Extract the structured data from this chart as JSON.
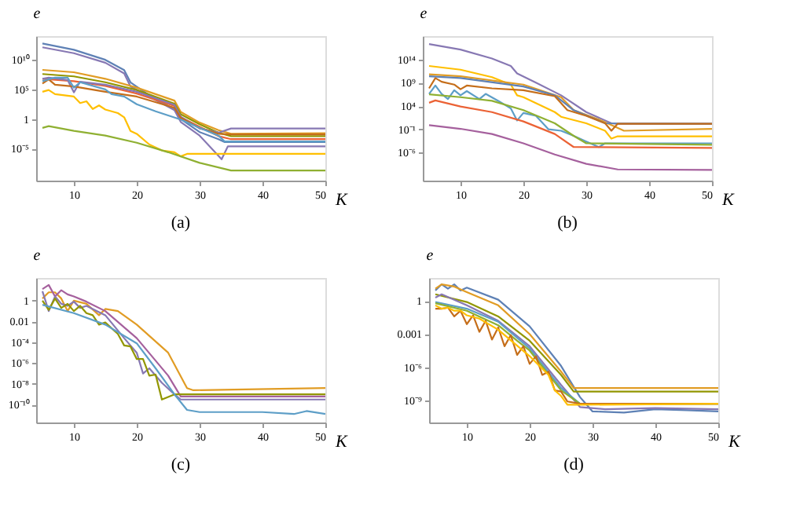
{
  "chart_data": [
    {
      "type": "line",
      "title": "(a)",
      "xlabel": "K",
      "ylabel": "e",
      "log": true,
      "xlim": [
        4,
        50
      ],
      "xticks": [
        10,
        20,
        30,
        40,
        50
      ],
      "ylim": [
        4e-11,
        100000000000000.0
      ],
      "yticks": [
        {
          "value": 1e-05,
          "label": "10⁻⁵"
        },
        1,
        {
          "value": 100000.0,
          "label": "10⁵"
        },
        {
          "value": 10000000000.0,
          "label": "10¹⁰"
        }
      ],
      "series": [
        {
          "color": "#5e81b5",
          "x": [
            5,
            10,
            15,
            18,
            19,
            22,
            26,
            27,
            30,
            33,
            34,
            50
          ],
          "values": [
            5600000000000.0,
            500000000000.0,
            10000000000.0,
            180000000.0,
            1600000.0,
            10000.0,
            40,
            1,
            0.0063,
            0.0004,
            0.00013,
            0.00013
          ]
        },
        {
          "color": "#8778b3",
          "x": [
            5,
            10,
            15,
            18,
            19,
            22,
            26,
            27,
            30,
            33.5,
            34.5,
            50
          ],
          "values": [
            1300000000000.0,
            130000000000.0,
            3200000000.0,
            50000000.0,
            320000.0,
            6300.0,
            32,
            0.32,
            0.0016,
            1.6e-07,
            2.5e-05,
            2.5e-05
          ]
        },
        {
          "color": "#e19c24",
          "x": [
            5,
            10,
            15,
            20,
            26,
            27,
            30,
            33,
            35,
            50
          ],
          "values": [
            200000000.0,
            80000000.0,
            6300000.0,
            200000.0,
            1300.0,
            16,
            0.25,
            0.013,
            0.0032,
            0.004
          ]
        },
        {
          "color": "#929600",
          "x": [
            5,
            10,
            15,
            20,
            26,
            27,
            30,
            33,
            35,
            50
          ],
          "values": [
            40000000.0,
            16000000.0,
            1600000.0,
            80000.0,
            400,
            6.3,
            0.13,
            0.005,
            0.0013,
            0.0013
          ]
        },
        {
          "color": "#eb6235",
          "x": [
            5,
            10,
            15,
            20,
            26,
            27,
            30,
            33,
            35,
            50
          ],
          "values": [
            6300000.0,
            2500000.0,
            400000.0,
            20000.0,
            160,
            2,
            0.05,
            0.0013,
            0.0004,
            0.0004
          ]
        },
        {
          "color": "#8778b3",
          "x": [
            5,
            6,
            9,
            10,
            11,
            15,
            20,
            26,
            27,
            30,
            33,
            35,
            50
          ],
          "values": [
            6300000.0,
            10000000.0,
            4000000.0,
            32000.0,
            2000000.0,
            630000.0,
            40000.0,
            250,
            2.5,
            0.025,
            0.005,
            0.025,
            0.025
          ]
        },
        {
          "color": "#c56e1a",
          "x": [
            5,
            6,
            7,
            10,
            15,
            20,
            26,
            27,
            30,
            33,
            35,
            50
          ],
          "values": [
            1000000.0,
            5000000.0,
            630000.0,
            320000.0,
            40000.0,
            6300.0,
            80,
            1.6,
            0.032,
            0.0032,
            0.0025,
            0.0025
          ]
        },
        {
          "color": "#5d9ec7",
          "x": [
            5,
            7,
            9,
            10,
            11,
            15,
            16,
            18,
            20,
            23,
            27,
            30,
            33,
            34,
            50
          ],
          "values": [
            2500000.0,
            10000000.0,
            10000000.0,
            200000.0,
            1600000.0,
            100000.0,
            16000.0,
            6300.0,
            320,
            20,
            0.8,
            0.032,
            0.0016,
            0.00016,
            0.00016
          ]
        },
        {
          "color": "#ffbf00",
          "x": [
            5,
            6,
            7,
            10,
            11,
            12,
            13,
            14,
            15,
            17,
            18,
            19,
            20,
            22,
            24,
            26,
            27,
            28,
            50
          ],
          "values": [
            40000.0,
            80000.0,
            16000.0,
            6300.0,
            500,
            1000.0,
            50,
            200,
            40,
            10,
            2,
            0.01,
            0.0032,
            5e-05,
            5e-06,
            2.5e-06,
            5e-07,
            1.3e-06,
            1.3e-06
          ]
        },
        {
          "color": "#8fb032",
          "x": [
            5,
            6,
            10,
            15,
            20,
            25,
            30,
            35,
            50
          ],
          "values": [
            0.032,
            0.063,
            0.01,
            0.0016,
            0.0001,
            2.5e-06,
            4e-08,
            2e-09,
            2e-09
          ]
        }
      ]
    },
    {
      "type": "line",
      "title": "(b)",
      "xlabel": "K",
      "ylabel": "e",
      "log": true,
      "xlim": [
        4,
        50
      ],
      "xticks": [
        10,
        20,
        30,
        40,
        50
      ],
      "ylim": [
        1e-12,
        1e+19
      ],
      "yticks": [
        {
          "value": 1e-06,
          "label": "10⁻⁶"
        },
        {
          "value": 0.1,
          "label": "10⁻¹"
        },
        {
          "value": 10000.0,
          "label": "10⁴"
        },
        {
          "value": 1000000000.0,
          "label": "10⁹"
        },
        {
          "value": 100000000000000.0,
          "label": "10¹⁴"
        }
      ],
      "series": [
        {
          "color": "#8778b3",
          "x": [
            5,
            10,
            15,
            18,
            19,
            22,
            26,
            30,
            34,
            35,
            50
          ],
          "values": [
            2e+17,
            1.3e+16,
            160000000000000.0,
            4000000000000.0,
            100000000000.0,
            1000000000.0,
            2000000.0,
            500,
            2,
            1.6,
            1.6
          ]
        },
        {
          "color": "#ffbf00",
          "x": [
            5,
            10,
            15,
            18,
            19,
            20,
            25,
            26,
            30,
            33,
            34,
            35,
            50
          ],
          "values": [
            4000000000000.0,
            630000000000.0,
            16000000000.0,
            400000000.0,
            2000000.0,
            800000.0,
            500,
            50,
            2,
            0.05,
            0.001,
            0.0032,
            0.0032
          ]
        },
        {
          "color": "#e19c24",
          "x": [
            5,
            10,
            20,
            26,
            28,
            32,
            34,
            36,
            50
          ],
          "values": [
            63000000000.0,
            25000000000.0,
            400000000.0,
            800000.0,
            1300.0,
            13,
            0.8,
            0.05,
            0.13
          ]
        },
        {
          "color": "#5e81b5",
          "x": [
            5,
            10,
            20,
            25,
            28,
            33,
            50
          ],
          "values": [
            25000000000.0,
            10000000000.0,
            160000000.0,
            2000000.0,
            1300.0,
            2,
            1.6
          ]
        },
        {
          "color": "#c56e1a",
          "x": [
            5,
            6,
            7,
            9,
            10,
            11,
            15,
            20,
            25,
            27,
            30,
            33,
            34,
            35,
            50
          ],
          "values": [
            63000000.0,
            10000000000.0,
            1600000000.0,
            400000000.0,
            40000000.0,
            250000000.0,
            63000000.0,
            25000000.0,
            1300000.0,
            1300.0,
            80,
            2,
            0.05,
            1.6,
            1.6
          ]
        },
        {
          "color": "#5d9ec7",
          "x": [
            5,
            6,
            7,
            8,
            9,
            10,
            11,
            13,
            14,
            16,
            18,
            19,
            20,
            22,
            24,
            26,
            28,
            30,
            32,
            33,
            50
          ],
          "values": [
            4000000.0,
            250000000.0,
            4000000.0,
            320000.0,
            25000000.0,
            2000000.0,
            16000000.0,
            320000.0,
            4000000.0,
            130000.0,
            3200.0,
            8,
            320,
            80,
            0.1,
            0.05,
            0.004,
            0.00025,
            1.6e-05,
            0.0001,
            0.0001
          ]
        },
        {
          "color": "#8fb032",
          "x": [
            5,
            10,
            15,
            20,
            25,
            28,
            30,
            50
          ],
          "values": [
            3200000.0,
            800000.0,
            130000.0,
            1300.0,
            2,
            0.004,
            0.0001,
            5e-05
          ]
        },
        {
          "color": "#eb6235",
          "x": [
            5,
            6,
            10,
            15,
            20,
            25,
            28,
            50
          ],
          "values": [
            50000.0,
            160000.0,
            8000.0,
            500,
            5,
            0.01,
            1.6e-05,
            1e-05
          ]
        },
        {
          "color": "#a5609d",
          "x": [
            5,
            10,
            15,
            20,
            25,
            30,
            35,
            50
          ],
          "values": [
            0.8,
            0.13,
            0.01,
            0.0001,
            4e-07,
            4e-09,
            2.5e-10,
            2e-10
          ]
        }
      ]
    },
    {
      "type": "line",
      "title": "(c)",
      "xlabel": "K",
      "ylabel": "e",
      "log": true,
      "xlim": [
        4,
        50
      ],
      "xticks": [
        10,
        20,
        30,
        40,
        50
      ],
      "ylim": [
        2e-12,
        150
      ],
      "yticks": [
        {
          "value": 1e-10,
          "label": "10⁻¹⁰"
        },
        {
          "value": 1e-08,
          "label": "10⁻⁸"
        },
        {
          "value": 1e-06,
          "label": "10⁻⁶"
        },
        {
          "value": 0.0001,
          "label": "10⁻⁴"
        },
        0.01,
        1
      ],
      "series": [
        {
          "color": "#e19c24",
          "x": [
            5,
            6,
            7,
            8,
            9,
            10,
            12,
            14,
            15,
            17,
            20,
            25,
            28,
            29,
            50
          ],
          "values": [
            1.6,
            6.3,
            6.3,
            1.6,
            0.1,
            1,
            0.5,
            0.04,
            0.16,
            0.1,
            0.005,
            1e-05,
            4e-09,
            2.5e-09,
            4e-09
          ]
        },
        {
          "color": "#a5609d",
          "x": [
            5,
            6,
            7,
            8,
            9,
            10,
            12,
            15,
            20,
            25,
            27,
            50
          ],
          "values": [
            13,
            32,
            2.5,
            10,
            4,
            2.5,
            0.8,
            0.1,
            0.00025,
            6.3e-08,
            6.3e-10,
            6.3e-10
          ]
        },
        {
          "color": "#8778b3",
          "x": [
            5,
            6,
            7,
            8,
            9,
            10,
            11,
            12,
            15,
            18,
            20,
            21,
            22,
            24,
            26,
            27,
            50
          ],
          "values": [
            8,
            0.1,
            2.5,
            0.5,
            0.32,
            0.8,
            0.2,
            0.32,
            0.04,
            0.00025,
            1e-05,
            1e-07,
            3.2e-07,
            1.3e-08,
            1e-09,
            3.2e-10,
            3.2e-10
          ]
        },
        {
          "color": "#929600",
          "x": [
            5,
            6,
            7,
            8,
            9,
            10,
            11,
            12,
            13,
            14,
            15,
            17,
            18,
            19,
            20,
            21,
            22,
            23,
            24,
            26,
            50
          ],
          "values": [
            1,
            0.13,
            1.6,
            0.2,
            0.5,
            0.1,
            0.32,
            0.063,
            0.04,
            0.005,
            0.008,
            0.00063,
            5e-05,
            4e-05,
            2.5e-06,
            2.5e-06,
            6.3e-08,
            8e-08,
            3.2e-10,
            1e-09,
            1e-09
          ]
        },
        {
          "color": "#5d9ec7",
          "x": [
            5,
            10,
            15,
            20,
            23,
            26,
            28,
            30,
            40,
            45,
            47,
            50
          ],
          "values": [
            0.4,
            0.063,
            0.005,
            8e-05,
            3.2e-07,
            1e-09,
            3.2e-11,
            2e-11,
            2e-11,
            1.3e-11,
            2.5e-11,
            1.3e-11
          ]
        }
      ]
    },
    {
      "type": "line",
      "title": "(d)",
      "xlabel": "K",
      "ylabel": "e",
      "log": true,
      "xlim": [
        4,
        50
      ],
      "xticks": [
        10,
        20,
        30,
        40,
        50
      ],
      "ylim": [
        1e-11,
        120
      ],
      "yticks": [
        {
          "value": 1e-09,
          "label": "10⁻⁹"
        },
        {
          "value": 1e-06,
          "label": "10⁻⁶"
        },
        0.001,
        1
      ],
      "series": [
        {
          "color": "#5e81b5",
          "x": [
            5,
            6,
            7,
            8,
            9,
            10,
            15,
            20,
            25,
            28,
            30,
            35,
            40,
            45,
            50
          ],
          "values": [
            8.9,
            32,
            13,
            32,
            8.9,
            16,
            1.3,
            0.005,
            1.3e-06,
            2e-09,
            1e-10,
            8e-11,
            1.6e-10,
            1.3e-10,
            1e-10
          ]
        },
        {
          "color": "#e19c24",
          "x": [
            5,
            6,
            8,
            10,
            15,
            20,
            25,
            27,
            50
          ],
          "values": [
            13,
            32,
            20,
            6.3,
            0.4,
            0.001,
            4e-07,
            1.3e-08,
            1.3e-08
          ]
        },
        {
          "color": "#929600",
          "x": [
            5,
            10,
            15,
            20,
            25,
            27,
            50
          ],
          "values": [
            4,
            0.8,
            0.04,
            0.00025,
            2e-07,
            6.3e-09,
            6.3e-09
          ]
        },
        {
          "color": "#8778b3",
          "x": [
            5,
            6,
            10,
            15,
            20,
            25,
            28,
            32,
            40,
            50
          ],
          "values": [
            2,
            4,
            0.4,
            0.016,
            8e-05,
            2.5e-08,
            2.5e-10,
            1.6e-10,
            2e-10,
            1.6e-10
          ]
        },
        {
          "color": "#5d9ec7",
          "x": [
            5,
            10,
            15,
            20,
            25,
            28,
            50
          ],
          "values": [
            0.8,
            0.2,
            0.013,
            5e-05,
            1.3e-08,
            5e-10,
            5e-10
          ]
        },
        {
          "color": "#8fb032",
          "x": [
            5,
            10,
            15,
            18,
            20,
            25,
            28,
            50
          ],
          "values": [
            0.63,
            0.13,
            0.0063,
            0.00025,
            3.2e-05,
            8e-09,
            5e-10,
            5e-10
          ]
        },
        {
          "color": "#c56e1a",
          "x": [
            5,
            6,
            7,
            8,
            9,
            10,
            11,
            12,
            13,
            14,
            15,
            16,
            17,
            18,
            19,
            20,
            21,
            22,
            23,
            24,
            25,
            26,
            28,
            50
          ],
          "values": [
            0.2,
            0.2,
            0.25,
            0.04,
            0.13,
            0.008,
            0.05,
            0.0016,
            0.016,
            0.00032,
            0.004,
            8e-05,
            0.0008,
            1.3e-05,
            8e-05,
            2e-06,
            1e-05,
            2e-07,
            4e-07,
            8e-09,
            6.3e-09,
            8e-10,
            5e-10,
            5e-10
          ]
        },
        {
          "color": "#ffbf00",
          "x": [
            5,
            6,
            7,
            8,
            9,
            10,
            12,
            15,
            20,
            23,
            24,
            25,
            26,
            28,
            50
          ],
          "values": [
            0.4,
            0.2,
            0.25,
            0.13,
            0.13,
            0.05,
            0.025,
            0.0025,
            1e-05,
            2e-07,
            8e-09,
            2.5e-09,
            4e-10,
            4e-10,
            5e-10
          ]
        }
      ]
    }
  ]
}
